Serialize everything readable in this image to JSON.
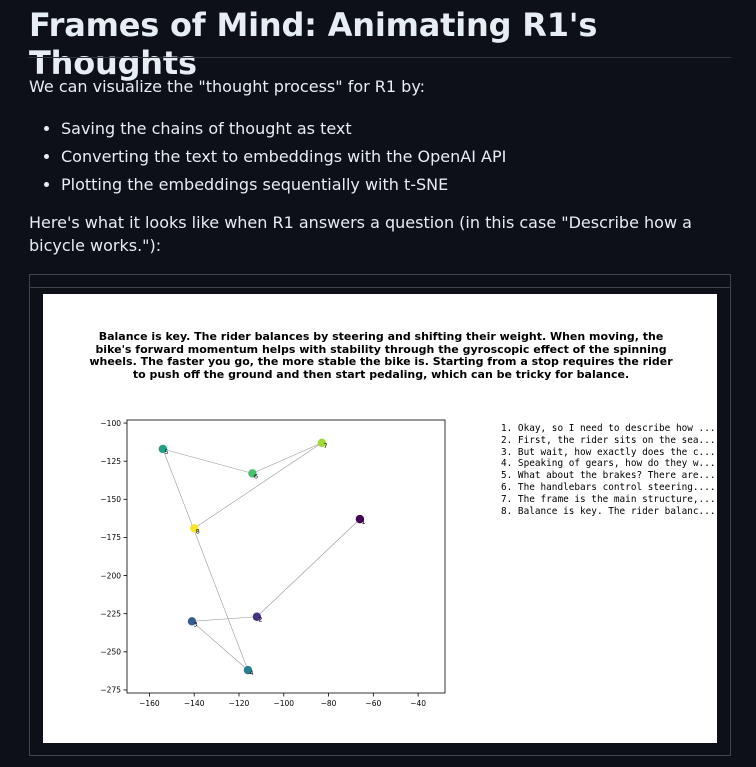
{
  "page": {
    "title": "Frames of Mind: Animating R1's Thoughts",
    "intro": "We can visualize the \"thought process\" for R1 by:",
    "steps": [
      "Saving the chains of thought as text",
      "Converting the text to embeddings with the OpenAI API",
      "Plotting the embeddings sequentially with t-SNE"
    ],
    "description": "Here's what it looks like when R1 answers a question (in this case \"Describe how a bicycle works.\"):"
  },
  "chart_data": {
    "type": "scatter",
    "title": "Balance is key. The rider balances by steering and shifting their weight. When moving, the bike's forward momentum helps with stability through the gyroscopic effect of the spinning wheels. The faster you go, the more stable the bike is. Starting from a stop requires the rider to push off the ground and then start pedaling, which can be tricky for balance.",
    "xlim": [
      -170,
      -28
    ],
    "ylim": [
      -277,
      -98
    ],
    "xticks": [
      -160,
      -140,
      -120,
      -100,
      -80,
      -60,
      -40
    ],
    "yticks": [
      -100,
      -125,
      -150,
      -175,
      -200,
      -225,
      -250,
      -275
    ],
    "grid": false,
    "points": [
      {
        "label": "1",
        "x": -66,
        "y": -163,
        "color": "#440154"
      },
      {
        "label": "2",
        "x": -112,
        "y": -227,
        "color": "#46327e"
      },
      {
        "label": "3",
        "x": -141,
        "y": -230,
        "color": "#365c8d"
      },
      {
        "label": "4",
        "x": -116,
        "y": -262,
        "color": "#277f8e"
      },
      {
        "label": "5",
        "x": -154,
        "y": -117,
        "color": "#1fa187"
      },
      {
        "label": "6",
        "x": -114,
        "y": -133,
        "color": "#4ac16d"
      },
      {
        "label": "7",
        "x": -83,
        "y": -113,
        "color": "#a0da39"
      },
      {
        "label": "8",
        "x": -140,
        "y": -169,
        "color": "#fde725"
      }
    ],
    "legend": [
      "1. Okay, so I need to describe how ...",
      "2. First, the rider sits on the sea...",
      "3. But wait, how exactly does the c...",
      "4. Speaking of gears, how do they w...",
      "5. What about the brakes? There are...",
      "6. The handlebars control steering....",
      "7. The frame is the main structure,...",
      "8. Balance is key. The rider balanc..."
    ]
  }
}
